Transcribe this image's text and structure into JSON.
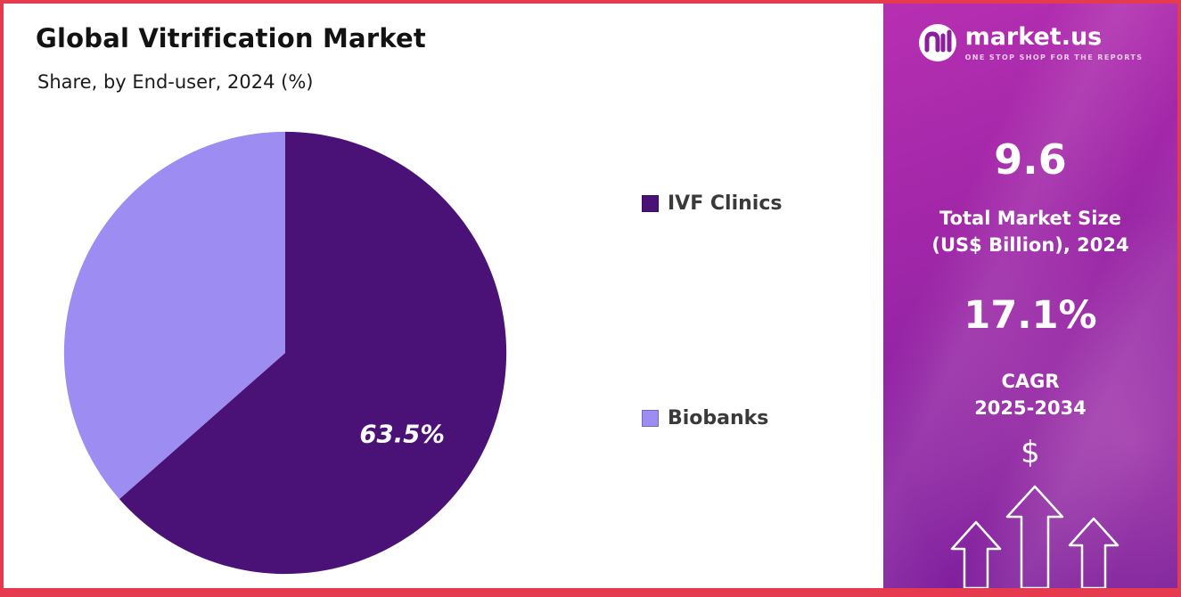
{
  "frame": {
    "border_color": "#e63a4f"
  },
  "chart": {
    "title": "Global Vitrification Market",
    "subtitle": "Share, by End-user, 2024 (%)"
  },
  "chart_data": {
    "type": "pie",
    "title": "Global Vitrification Market",
    "subtitle": "Share, by End-user, 2024 (%)",
    "labels": [
      "IVF Clinics",
      "Biobanks"
    ],
    "values": [
      63.5,
      36.5
    ],
    "colors": [
      "#4a1277",
      "#9d8cf1"
    ],
    "data_labels": [
      "63.5%",
      ""
    ],
    "start_angle": "top",
    "direction": "clockwise",
    "legend_position": "right"
  },
  "sidebar": {
    "logo_name": "market.us",
    "logo_tagline": "ONE STOP SHOP FOR THE REPORTS",
    "stat1_value": "9.6",
    "stat1_label_line1": "Total Market Size",
    "stat1_label_line2": "(US$ Billion), 2024",
    "stat2_value": "17.1%",
    "stat2_label_line1": "CAGR",
    "stat2_label_line2": "2025-2034",
    "dollar_symbol": "$"
  }
}
